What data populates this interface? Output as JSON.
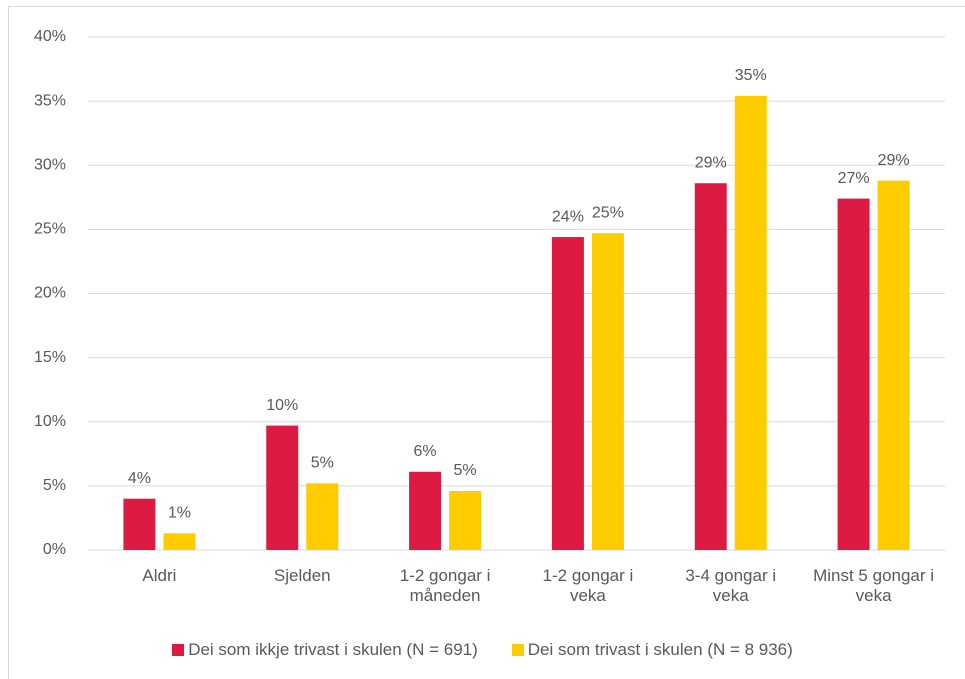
{
  "chart_data": {
    "type": "bar",
    "categories": [
      "Aldri",
      "Sjelden",
      "1-2 gongar i måneden",
      "1-2 gongar i veka",
      "3-4 gongar i veka",
      "Minst 5 gongar i veka"
    ],
    "series": [
      {
        "name": "Dei som ikkje trivast i skulen (N = 691)",
        "color": "#dc1a42",
        "values": [
          4.0,
          9.7,
          6.1,
          24.4,
          28.6,
          27.4
        ],
        "value_labels": [
          "4%",
          "10%",
          "6%",
          "24%",
          "29%",
          "27%"
        ]
      },
      {
        "name": "Dei som trivast i skulen (N = 8 936)",
        "color": "#ffcc00",
        "values": [
          1.3,
          5.2,
          4.6,
          24.7,
          35.4,
          28.8
        ],
        "value_labels": [
          "1%",
          "5%",
          "5%",
          "25%",
          "35%",
          "29%"
        ]
      }
    ],
    "ylim": [
      0,
      40
    ],
    "yticks": [
      {
        "value": 0,
        "label": "0%"
      },
      {
        "value": 5,
        "label": "5%"
      },
      {
        "value": 10,
        "label": "10%"
      },
      {
        "value": 15,
        "label": "15%"
      },
      {
        "value": 20,
        "label": "20%"
      },
      {
        "value": 25,
        "label": "25%"
      },
      {
        "value": 30,
        "label": "30%"
      },
      {
        "value": 35,
        "label": "35%"
      },
      {
        "value": 40,
        "label": "40%"
      }
    ],
    "grid": true,
    "legend": "bottom"
  }
}
